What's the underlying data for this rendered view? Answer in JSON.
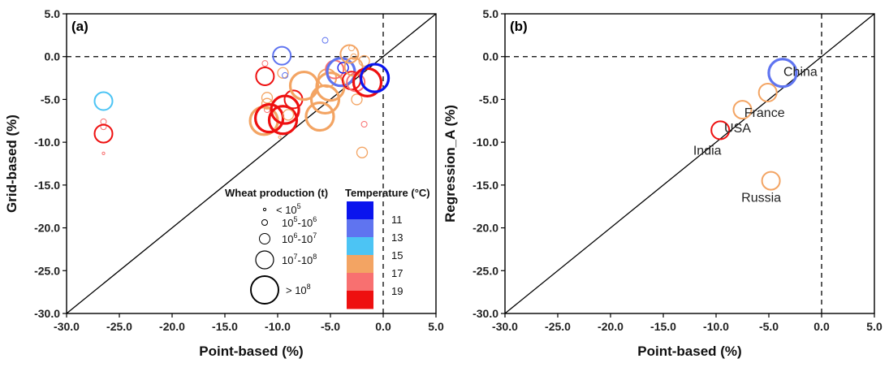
{
  "colors": {
    "axis": "#000000",
    "t11": "#0a14ee",
    "t13": "#5f74f0",
    "t15": "#4cc4f4",
    "t17": "#f3a463",
    "t18": "#f87070",
    "t19": "#ee1010"
  },
  "chart_data": [
    {
      "type": "scatter",
      "panel_label": "(a)",
      "xlabel": "Point-based (%)",
      "ylabel": "Grid-based (%)",
      "xlim": [
        -30,
        5
      ],
      "ylim": [
        -30,
        5
      ],
      "xticks": [
        "-30.0",
        "-25.0",
        "-20.0",
        "-15.0",
        "-10.0",
        "-5.0",
        "0.0",
        "5.0"
      ],
      "yticks": [
        "-30.0",
        "-25.0",
        "-20.0",
        "-15.0",
        "-10.0",
        "-5.0",
        "0.0",
        "5.0"
      ],
      "reference_lines": [
        "y = x",
        "x = 0 (dashed)",
        "y = 0 (dashed)"
      ],
      "points": [
        {
          "x": -26.5,
          "y": -5.2,
          "size": 3,
          "temp": 15
        },
        {
          "x": -26.5,
          "y": -7.6,
          "size": 1,
          "temp": 18
        },
        {
          "x": -26.5,
          "y": -8.2,
          "size": 1,
          "temp": 18
        },
        {
          "x": -26.5,
          "y": -9.0,
          "size": 3,
          "temp": 19
        },
        {
          "x": -26.5,
          "y": -11.3,
          "size": 0,
          "temp": 18
        },
        {
          "x": -11.2,
          "y": -0.8,
          "size": 1,
          "temp": 18
        },
        {
          "x": -11.2,
          "y": -2.3,
          "size": 3,
          "temp": 19
        },
        {
          "x": -11.0,
          "y": -4.8,
          "size": 2,
          "temp": 17
        },
        {
          "x": -11.0,
          "y": -5.5,
          "size": 2,
          "temp": 17
        },
        {
          "x": -11.0,
          "y": -6.2,
          "size": 1,
          "temp": 18
        },
        {
          "x": -11.3,
          "y": -7.5,
          "size": 4,
          "temp": 17
        },
        {
          "x": -10.8,
          "y": -7.2,
          "size": 4,
          "temp": 19
        },
        {
          "x": -9.6,
          "y": 0.1,
          "size": 3,
          "temp": 13
        },
        {
          "x": -9.5,
          "y": -1.9,
          "size": 2,
          "temp": 17
        },
        {
          "x": -9.3,
          "y": -2.2,
          "size": 1,
          "temp": 13
        },
        {
          "x": -9.3,
          "y": -6.2,
          "size": 4,
          "temp": 19
        },
        {
          "x": -9.5,
          "y": -7.4,
          "size": 4,
          "temp": 19
        },
        {
          "x": -9.0,
          "y": -6.8,
          "size": 2,
          "temp": 17
        },
        {
          "x": -8.5,
          "y": -5.0,
          "size": 3,
          "temp": 19
        },
        {
          "x": -9.8,
          "y": -9.4,
          "size": 0,
          "temp": 17
        },
        {
          "x": -7.5,
          "y": -3.4,
          "size": 4,
          "temp": 17
        },
        {
          "x": -6.0,
          "y": -7.0,
          "size": 4,
          "temp": 17
        },
        {
          "x": -5.5,
          "y": -5.0,
          "size": 4,
          "temp": 17
        },
        {
          "x": -5.0,
          "y": -3.5,
          "size": 4,
          "temp": 17
        },
        {
          "x": -5.3,
          "y": -2.5,
          "size": 3,
          "temp": 17
        },
        {
          "x": -5.5,
          "y": 1.9,
          "size": 1,
          "temp": 13
        },
        {
          "x": -4.6,
          "y": -1.5,
          "size": 3,
          "temp": 18
        },
        {
          "x": -4.0,
          "y": -1.8,
          "size": 4,
          "temp": 13
        },
        {
          "x": -3.8,
          "y": -1.3,
          "size": 2,
          "temp": 11
        },
        {
          "x": -3.2,
          "y": 0.3,
          "size": 3,
          "temp": 17
        },
        {
          "x": -3.0,
          "y": -2.8,
          "size": 3,
          "temp": 19
        },
        {
          "x": -2.8,
          "y": 0.0,
          "size": 1,
          "temp": 17
        },
        {
          "x": -2.6,
          "y": -3.0,
          "size": 3,
          "temp": 18
        },
        {
          "x": -2.5,
          "y": -5.0,
          "size": 2,
          "temp": 17
        },
        {
          "x": -2.8,
          "y": -1.2,
          "size": 3,
          "temp": 17
        },
        {
          "x": -1.8,
          "y": -0.5,
          "size": 2,
          "temp": 17
        },
        {
          "x": -2.1,
          "y": -1.8,
          "size": 1,
          "temp": 18
        },
        {
          "x": -1.5,
          "y": -3.0,
          "size": 4,
          "temp": 19
        },
        {
          "x": -0.8,
          "y": -2.5,
          "size": 4,
          "temp": 11
        },
        {
          "x": -2.0,
          "y": -11.2,
          "size": 2,
          "temp": 17
        },
        {
          "x": -1.8,
          "y": -7.9,
          "size": 1,
          "temp": 18
        },
        {
          "x": -3.0,
          "y": 1.0,
          "size": 1,
          "temp": 17
        }
      ],
      "legend": {
        "size_title": "Wheat production (t)",
        "size_items": [
          {
            "base": "< 10",
            "exp": "5",
            "rest": ""
          },
          {
            "base": "10",
            "exp": "5",
            "rest": "-10",
            "exp2": "6"
          },
          {
            "base": "10",
            "exp": "6",
            "rest": "-10",
            "exp2": "7"
          },
          {
            "base": "10",
            "exp": "7",
            "rest": "-10",
            "exp2": "8"
          },
          {
            "base": "> 10",
            "exp": "8",
            "rest": ""
          }
        ],
        "temp_title": "Temperature (°C)",
        "temp_labels": [
          "11",
          "13",
          "15",
          "17",
          "19"
        ]
      }
    },
    {
      "type": "scatter",
      "panel_label": "(b)",
      "xlabel": "Point-based (%)",
      "ylabel": "Regression_A (%)",
      "xlim": [
        -30,
        5
      ],
      "ylim": [
        -30,
        5
      ],
      "xticks": [
        "-30.0",
        "-25.0",
        "-20.0",
        "-15.0",
        "-10.0",
        "-5.0",
        "0.0",
        "5.0"
      ],
      "yticks": [
        "-30.0",
        "-25.0",
        "-20.0",
        "-15.0",
        "-10.0",
        "-5.0",
        "0.0",
        "5.0"
      ],
      "reference_lines": [
        "y = x",
        "x = 0 (dashed)",
        "y = 0 (dashed)"
      ],
      "points": [
        {
          "label": "China",
          "x": -3.7,
          "y": -1.9,
          "size": 4,
          "temp": 13
        },
        {
          "label": "France",
          "x": -5.1,
          "y": -4.2,
          "size": 3,
          "temp": 17
        },
        {
          "label": "USA",
          "x": -7.5,
          "y": -6.2,
          "size": 3,
          "temp": 17
        },
        {
          "label": "India",
          "x": -9.6,
          "y": -8.6,
          "size": 3,
          "temp": 19
        },
        {
          "label": "Russia",
          "x": -4.8,
          "y": -14.5,
          "size": 3,
          "temp": 17
        }
      ]
    }
  ]
}
